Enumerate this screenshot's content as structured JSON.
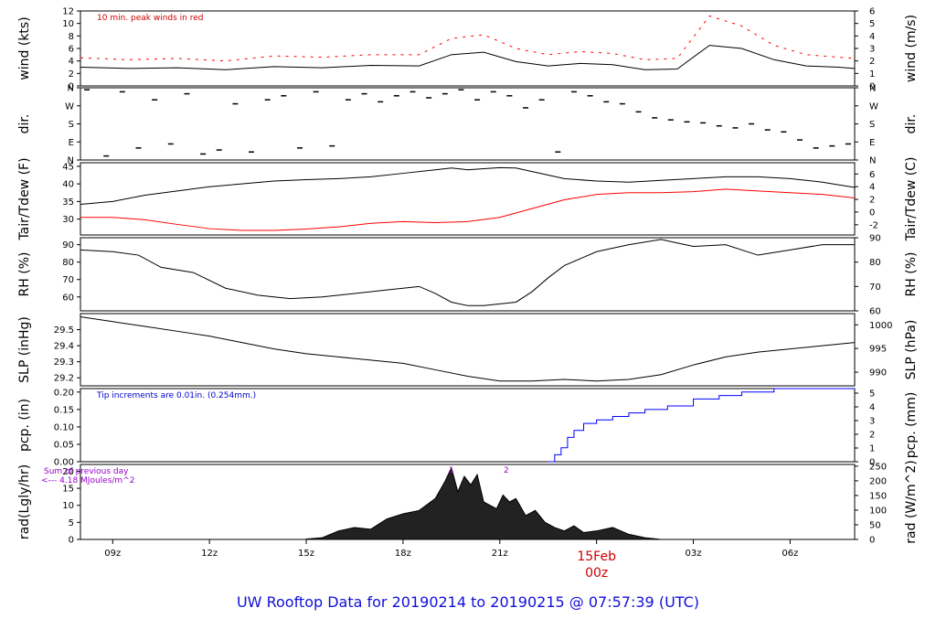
{
  "chart_data": [
    {
      "type": "line",
      "ylabel_left": "wind (kts)",
      "ylabel_right": "wind (m/s)",
      "ylim_left": [
        0,
        12
      ],
      "yticks_left": [
        0,
        2,
        4,
        6,
        8,
        10,
        12
      ],
      "yticks_right": [
        "0",
        "1",
        "2",
        "3",
        "4",
        "5",
        "6"
      ],
      "annotations": [
        {
          "text": "10 min. peak winds in red",
          "color": "#cc0000"
        }
      ],
      "series": [
        {
          "color": "#000000",
          "x": [
            8.0,
            9.5,
            11.0,
            12.5,
            14.0,
            15.5,
            17.0,
            18.5,
            19.5,
            20.5,
            21.5,
            22.5,
            23.5,
            24.5,
            25.5,
            26.5,
            27.5,
            28.5,
            29.5,
            30.5,
            31.5,
            32.0
          ],
          "values": [
            3.0,
            2.8,
            2.9,
            2.6,
            3.1,
            2.9,
            3.3,
            3.2,
            5.0,
            5.4,
            3.9,
            3.2,
            3.6,
            3.4,
            2.6,
            2.7,
            6.5,
            6.0,
            4.2,
            3.2,
            3.0,
            2.8
          ]
        },
        {
          "color": "#ff0000",
          "style": "dash",
          "x": [
            8.0,
            9.5,
            11.0,
            12.5,
            14.0,
            15.5,
            17.0,
            18.5,
            19.5,
            20.5,
            21.5,
            22.5,
            23.5,
            24.5,
            25.5,
            26.5,
            27.5,
            28.5,
            29.5,
            30.5,
            31.5,
            32.0
          ],
          "values": [
            4.5,
            4.2,
            4.4,
            4.0,
            4.8,
            4.6,
            5.0,
            5.0,
            7.6,
            8.2,
            6.0,
            5.0,
            5.5,
            5.2,
            4.2,
            4.4,
            11.2,
            9.6,
            6.5,
            5.0,
            4.6,
            4.4
          ]
        }
      ]
    },
    {
      "type": "scatter",
      "ylabel_left": "dir.",
      "ylabel_right": "dir.",
      "ylim_left": [
        0,
        360
      ],
      "ytick_values": [
        0,
        90,
        180,
        270,
        360
      ],
      "yticks_left": [
        "N",
        "E",
        "S",
        "W",
        "N"
      ],
      "yticks_right": [
        "N",
        "E",
        "S",
        "W",
        "N"
      ],
      "series": [
        {
          "color": "#000000",
          "x": [
            8.2,
            8.8,
            9.3,
            9.8,
            10.3,
            10.8,
            11.3,
            11.8,
            12.3,
            12.8,
            13.3,
            13.8,
            14.3,
            14.8,
            15.3,
            15.8,
            16.3,
            16.8,
            17.3,
            17.8,
            18.3,
            18.8,
            19.3,
            19.8,
            20.3,
            20.8,
            21.3,
            21.8,
            22.3,
            22.8,
            23.3,
            23.8,
            24.3,
            24.8,
            25.3,
            25.8,
            26.3,
            26.8,
            27.3,
            27.8,
            28.3,
            28.8,
            29.3,
            29.8,
            30.3,
            30.8,
            31.3,
            31.8
          ],
          "values": [
            350,
            20,
            340,
            60,
            300,
            80,
            330,
            30,
            50,
            280,
            40,
            300,
            320,
            60,
            340,
            70,
            300,
            330,
            290,
            320,
            340,
            310,
            330,
            350,
            300,
            340,
            320,
            260,
            300,
            40,
            340,
            320,
            290,
            280,
            240,
            210,
            200,
            190,
            185,
            170,
            160,
            180,
            150,
            140,
            100,
            60,
            70,
            80
          ]
        }
      ]
    },
    {
      "type": "line",
      "ylabel_left": "Tair/Tdew (F)",
      "ylabel_right": "Tair/Tdew (C)",
      "ylim_left": [
        25.5,
        46
      ],
      "yticks_left": [
        30,
        35,
        40,
        45
      ],
      "yticks_right": [
        "-2",
        "0",
        "2",
        "4",
        "6"
      ],
      "yticks_right_values": [
        28.4,
        32,
        35.6,
        39.2,
        42.8
      ],
      "series": [
        {
          "color": "#000000",
          "x": [
            8.0,
            9.0,
            10.0,
            11.0,
            12.0,
            13.0,
            14.0,
            15.0,
            16.0,
            17.0,
            18.0,
            19.0,
            19.5,
            20.0,
            20.5,
            21.0,
            21.5,
            22.0,
            22.5,
            23.0,
            24.0,
            25.0,
            26.0,
            27.0,
            28.0,
            29.0,
            30.0,
            31.0,
            32.0
          ],
          "values": [
            34.2,
            35.0,
            36.8,
            38.0,
            39.2,
            40.0,
            40.8,
            41.2,
            41.5,
            42.0,
            43.0,
            44.0,
            44.5,
            44.0,
            44.3,
            44.6,
            44.5,
            43.5,
            42.5,
            41.5,
            40.8,
            40.5,
            41.0,
            41.5,
            42.0,
            42.0,
            41.5,
            40.5,
            39.0
          ]
        },
        {
          "color": "#ff0000",
          "x": [
            8.0,
            9.0,
            10.0,
            11.0,
            12.0,
            13.0,
            14.0,
            15.0,
            16.0,
            17.0,
            18.0,
            19.0,
            20.0,
            21.0,
            22.0,
            23.0,
            24.0,
            25.0,
            26.0,
            27.0,
            28.0,
            29.0,
            30.0,
            31.0,
            32.0
          ],
          "values": [
            30.5,
            30.5,
            29.8,
            28.5,
            27.3,
            26.8,
            26.8,
            27.2,
            27.8,
            28.8,
            29.3,
            29.0,
            29.3,
            30.5,
            33.0,
            35.5,
            37.0,
            37.5,
            37.5,
            37.8,
            38.5,
            38.0,
            37.5,
            37.0,
            36.0
          ]
        }
      ]
    },
    {
      "type": "line",
      "ylabel_left": "RH (%)",
      "ylabel_right": "RH (%)",
      "ylim_left": [
        52,
        94
      ],
      "yticks_left": [
        60,
        70,
        80,
        90
      ],
      "yticks_right": [
        "60",
        "70",
        "80",
        "90"
      ],
      "series": [
        {
          "color": "#000000",
          "x": [
            8.0,
            9.0,
            9.8,
            10.5,
            11.5,
            12.5,
            13.5,
            14.5,
            15.5,
            16.5,
            17.5,
            18.5,
            19.0,
            19.5,
            20.0,
            20.5,
            21.0,
            21.5,
            22.0,
            22.5,
            23.0,
            24.0,
            25.0,
            26.0,
            26.5,
            27.0,
            28.0,
            29.0,
            30.0,
            31.0,
            32.0
          ],
          "values": [
            87,
            86,
            84,
            77,
            74,
            65,
            61,
            59,
            60,
            62,
            64,
            66,
            62,
            57,
            55,
            55,
            56,
            57,
            63,
            71,
            78,
            86,
            90,
            93,
            91,
            89,
            90,
            84,
            87,
            90,
            90
          ]
        }
      ]
    },
    {
      "type": "line",
      "ylabel_left": "SLP (inHg)",
      "ylabel_right": "SLP (hPa)",
      "ylim_left": [
        29.15,
        29.6
      ],
      "yticks_left": [
        "29.2",
        "29.3",
        "29.4",
        "29.5"
      ],
      "yticks_left_values": [
        29.2,
        29.3,
        29.4,
        29.5
      ],
      "yticks_right": [
        "990",
        "995",
        "1000"
      ],
      "yticks_right_values": [
        29.235,
        29.383,
        29.53
      ],
      "series": [
        {
          "color": "#000000",
          "x": [
            8.0,
            9.0,
            10.0,
            11.0,
            12.0,
            13.0,
            14.0,
            15.0,
            16.0,
            17.0,
            18.0,
            19.0,
            20.0,
            21.0,
            22.0,
            23.0,
            24.0,
            25.0,
            26.0,
            27.0,
            28.0,
            29.0,
            30.0,
            31.0,
            32.0
          ],
          "values": [
            29.58,
            29.55,
            29.52,
            29.49,
            29.46,
            29.42,
            29.38,
            29.35,
            29.33,
            29.31,
            29.29,
            29.25,
            29.21,
            29.18,
            29.18,
            29.19,
            29.18,
            29.19,
            29.22,
            29.28,
            29.33,
            29.36,
            29.38,
            29.4,
            29.42
          ]
        }
      ]
    },
    {
      "type": "line",
      "ylabel_left": "pcp. (in)",
      "ylabel_right": "pcp. (mm)",
      "ylim_left": [
        0,
        0.21
      ],
      "yticks_left": [
        "0.00",
        "0.05",
        "0.10",
        "0.15",
        "0.20"
      ],
      "yticks_left_values": [
        0,
        0.05,
        0.1,
        0.15,
        0.2
      ],
      "yticks_right": [
        "0",
        "1",
        "2",
        "3",
        "4",
        "5"
      ],
      "yticks_right_values": [
        0,
        0.03937,
        0.07874,
        0.11811,
        0.15748,
        0.19685
      ],
      "annotations": [
        {
          "text": "Tip increments are 0.01in. (0.254mm.)",
          "color": "#0000cc"
        }
      ],
      "series": [
        {
          "color": "#000000",
          "x": [
            8.0,
            22.5
          ],
          "values": [
            0,
            0
          ]
        },
        {
          "color": "#0000ff",
          "step": true,
          "x": [
            22.5,
            22.7,
            22.9,
            23.1,
            23.3,
            23.6,
            24.0,
            24.5,
            25.0,
            25.5,
            26.2,
            27.0,
            27.8,
            28.5,
            29.5,
            32.0
          ],
          "values": [
            0.0,
            0.02,
            0.04,
            0.07,
            0.09,
            0.11,
            0.12,
            0.13,
            0.14,
            0.15,
            0.16,
            0.18,
            0.19,
            0.2,
            0.21,
            0.21
          ]
        }
      ]
    },
    {
      "type": "area",
      "ylabel_left": "rad(Lgly/hr)",
      "ylabel_right": "rad (W/m^2)",
      "ylim_left": [
        0,
        22
      ],
      "yticks_left": [
        0,
        5,
        10,
        15,
        20
      ],
      "yticks_right": [
        "0",
        "50",
        "100",
        "150",
        "200",
        "250"
      ],
      "yticks_right_values": [
        0,
        4.3,
        8.6,
        12.9,
        17.2,
        21.5
      ],
      "annotations": [
        {
          "text": "Sum of previous day",
          "color": "#9900cc"
        },
        {
          "text": "<--- 4.18 MJoules/m^2",
          "color": "#9900cc"
        },
        {
          "text": "1",
          "color": "#9900cc"
        },
        {
          "text": "2",
          "color": "#9900cc"
        }
      ],
      "series": [
        {
          "color": "#000000",
          "x": [
            15.0,
            15.5,
            16.0,
            16.5,
            17.0,
            17.5,
            18.0,
            18.5,
            19.0,
            19.3,
            19.5,
            19.7,
            19.9,
            20.1,
            20.3,
            20.5,
            20.7,
            20.9,
            21.1,
            21.3,
            21.5,
            21.8,
            22.1,
            22.4,
            22.7,
            23.0,
            23.3,
            23.6,
            24.0,
            24.5,
            25.0,
            25.5,
            26.0
          ],
          "values": [
            0.1,
            0.5,
            2.5,
            3.5,
            3.0,
            6.0,
            7.5,
            8.5,
            12.0,
            17.0,
            21.0,
            14.0,
            18.5,
            16.0,
            19.0,
            11.0,
            10.0,
            9.0,
            13.0,
            11.0,
            12.0,
            7.0,
            8.5,
            5.0,
            3.5,
            2.5,
            4.0,
            2.0,
            2.5,
            3.5,
            1.5,
            0.5,
            0.0
          ]
        }
      ]
    }
  ],
  "x_axis": {
    "xlim": [
      8.0,
      32.0
    ],
    "tick_values": [
      9,
      12,
      15,
      18,
      21,
      24,
      27,
      30
    ],
    "tick_labels": [
      "09z",
      "12z",
      "15z",
      "18z",
      "21z",
      "",
      "03z",
      "06z"
    ],
    "date_marker": {
      "value": 24,
      "line1": "15Feb",
      "line2": "00z",
      "color": "#cc0000"
    }
  },
  "footer_title": "UW Rooftop Data for 20190214  to  20190215 @ 07:57:39  (UTC)"
}
